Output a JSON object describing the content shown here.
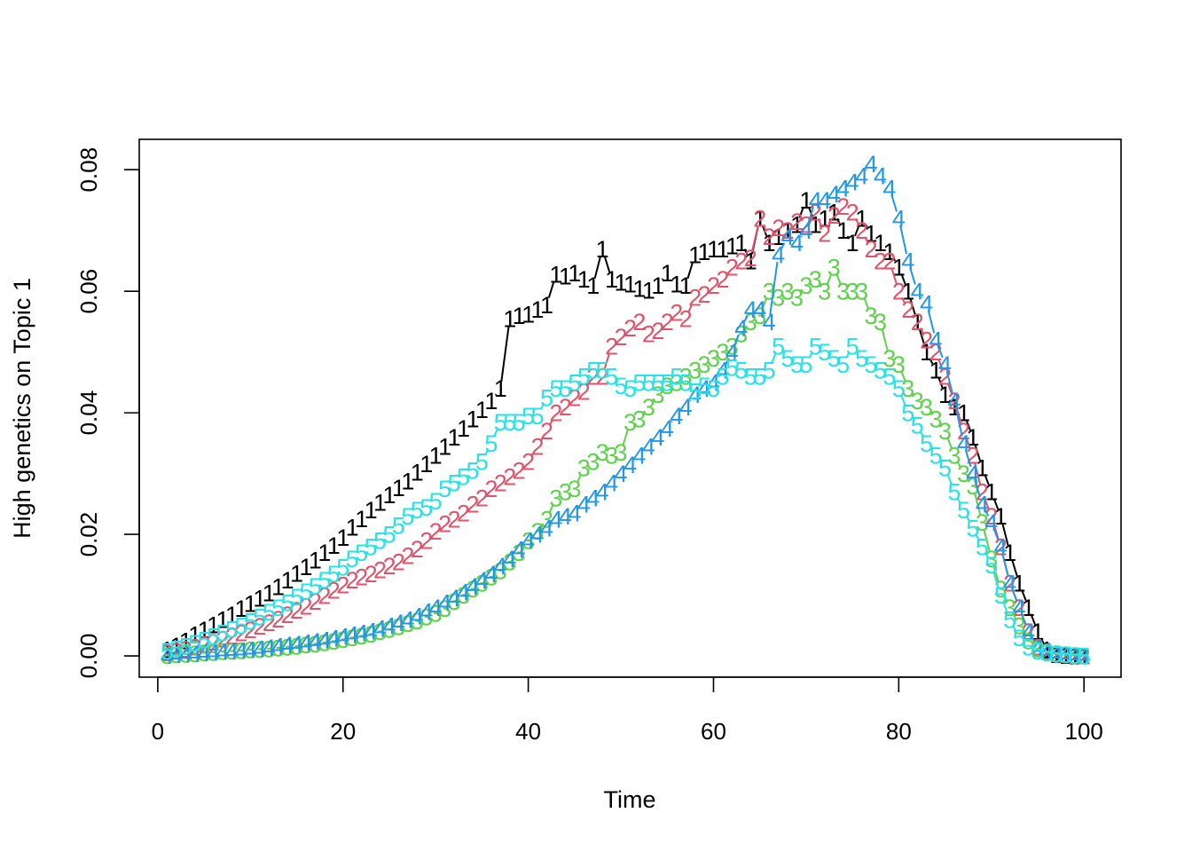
{
  "chart_data": {
    "type": "line",
    "plot_style": "numbered-character-points",
    "title": "",
    "xlabel": "Time",
    "ylabel": "High genetics on Topic 1",
    "xlim": [
      -2,
      104
    ],
    "ylim": [
      -0.0035,
      0.085
    ],
    "x_ticks": [
      0,
      20,
      40,
      60,
      80,
      100
    ],
    "x_tick_labels": [
      "0",
      "20",
      "40",
      "60",
      "80",
      "100"
    ],
    "y_ticks": [
      0,
      0.02,
      0.04,
      0.06,
      0.08
    ],
    "y_tick_labels": [
      "0.00",
      "0.02",
      "0.04",
      "0.06",
      "0.08"
    ],
    "grid": false,
    "x": [
      1,
      2,
      3,
      4,
      5,
      6,
      7,
      8,
      9,
      10,
      11,
      12,
      13,
      14,
      15,
      16,
      17,
      18,
      19,
      20,
      21,
      22,
      23,
      24,
      25,
      26,
      27,
      28,
      29,
      30,
      31,
      32,
      33,
      34,
      35,
      36,
      37,
      38,
      39,
      40,
      41,
      42,
      43,
      44,
      45,
      46,
      47,
      48,
      49,
      50,
      51,
      52,
      53,
      54,
      55,
      56,
      57,
      58,
      59,
      60,
      61,
      62,
      63,
      64,
      65,
      66,
      67,
      68,
      69,
      70,
      71,
      72,
      73,
      74,
      75,
      76,
      77,
      78,
      79,
      80,
      81,
      82,
      83,
      84,
      85,
      86,
      87,
      88,
      89,
      90,
      91,
      92,
      93,
      94,
      95,
      96,
      97,
      98,
      99,
      100
    ],
    "series": [
      {
        "name": "1",
        "symbol": "1",
        "color": "#000000",
        "values": [
          0.001,
          0.0017,
          0.0025,
          0.0035,
          0.0043,
          0.0051,
          0.006,
          0.0068,
          0.0078,
          0.0086,
          0.0095,
          0.0104,
          0.0114,
          0.0125,
          0.0136,
          0.0147,
          0.0158,
          0.017,
          0.0182,
          0.0195,
          0.0212,
          0.0226,
          0.024,
          0.0253,
          0.0265,
          0.0277,
          0.0288,
          0.0302,
          0.0316,
          0.033,
          0.0345,
          0.036,
          0.0375,
          0.039,
          0.0405,
          0.042,
          0.044,
          0.0555,
          0.056,
          0.0562,
          0.057,
          0.0578,
          0.0628,
          0.0625,
          0.063,
          0.062,
          0.061,
          0.067,
          0.062,
          0.0615,
          0.0612,
          0.0605,
          0.0602,
          0.061,
          0.063,
          0.0612,
          0.061,
          0.066,
          0.0665,
          0.067,
          0.067,
          0.0675,
          0.068,
          0.065,
          0.072,
          0.068,
          0.069,
          0.07,
          0.071,
          0.075,
          0.071,
          0.072,
          0.073,
          0.07,
          0.068,
          0.072,
          0.0695,
          0.068,
          0.0665,
          0.064,
          0.06,
          0.055,
          0.05,
          0.047,
          0.043,
          0.041,
          0.04,
          0.036,
          0.031,
          0.027,
          0.023,
          0.017,
          0.012,
          0.008,
          0.004,
          0.001,
          0.0002,
          0.0001,
          0.0,
          0.0
        ]
      },
      {
        "name": "2",
        "symbol": "2",
        "color": "#DF536B",
        "values": [
          0.0005,
          0.0008,
          0.0011,
          0.0015,
          0.0019,
          0.0023,
          0.0028,
          0.0033,
          0.0038,
          0.0043,
          0.0049,
          0.0055,
          0.0061,
          0.0068,
          0.0075,
          0.0082,
          0.009,
          0.0099,
          0.0108,
          0.0117,
          0.0125,
          0.013,
          0.0135,
          0.0142,
          0.0148,
          0.0155,
          0.0165,
          0.0176,
          0.019,
          0.0205,
          0.0218,
          0.0225,
          0.0235,
          0.025,
          0.026,
          0.0275,
          0.0285,
          0.0295,
          0.0305,
          0.032,
          0.0345,
          0.037,
          0.04,
          0.041,
          0.0425,
          0.0435,
          0.046,
          0.046,
          0.051,
          0.0525,
          0.054,
          0.055,
          0.053,
          0.0535,
          0.055,
          0.0565,
          0.0555,
          0.059,
          0.0595,
          0.061,
          0.062,
          0.064,
          0.065,
          0.0655,
          0.072,
          0.069,
          0.0705,
          0.07,
          0.0715,
          0.071,
          0.073,
          0.0695,
          0.0725,
          0.074,
          0.073,
          0.07,
          0.067,
          0.065,
          0.065,
          0.06,
          0.057,
          0.055,
          0.052,
          0.05,
          0.046,
          0.042,
          0.037,
          0.033,
          0.027,
          0.023,
          0.018,
          0.012,
          0.008,
          0.004,
          0.0015,
          0.0007,
          0.0004,
          0.0002,
          0.0001,
          0.0
        ]
      },
      {
        "name": "3",
        "symbol": "3",
        "color": "#61D04F",
        "values": [
          0.0001,
          0.0002,
          0.0003,
          0.0004,
          0.0005,
          0.0006,
          0.0007,
          0.0008,
          0.0009,
          0.001,
          0.0011,
          0.0012,
          0.0013,
          0.0015,
          0.0016,
          0.0018,
          0.002,
          0.0022,
          0.0024,
          0.0027,
          0.003,
          0.0033,
          0.0036,
          0.004,
          0.0044,
          0.0048,
          0.0053,
          0.0058,
          0.0064,
          0.007,
          0.0078,
          0.009,
          0.01,
          0.011,
          0.012,
          0.013,
          0.014,
          0.0155,
          0.017,
          0.019,
          0.0205,
          0.0225,
          0.026,
          0.027,
          0.0275,
          0.031,
          0.032,
          0.0335,
          0.033,
          0.0335,
          0.0385,
          0.039,
          0.041,
          0.043,
          0.0445,
          0.045,
          0.046,
          0.047,
          0.048,
          0.049,
          0.05,
          0.051,
          0.053,
          0.055,
          0.056,
          0.06,
          0.059,
          0.06,
          0.059,
          0.061,
          0.062,
          0.06,
          0.064,
          0.06,
          0.06,
          0.06,
          0.056,
          0.055,
          0.049,
          0.048,
          0.044,
          0.042,
          0.041,
          0.039,
          0.037,
          0.033,
          0.03,
          0.028,
          0.022,
          0.016,
          0.011,
          0.008,
          0.005,
          0.0025,
          0.0012,
          0.0006,
          0.0003,
          0.0002,
          0.0001,
          0.0
        ]
      },
      {
        "name": "4",
        "symbol": "4",
        "color": "#2297E6",
        "values": [
          0.0001,
          0.0002,
          0.0003,
          0.0004,
          0.0005,
          0.0006,
          0.0007,
          0.0008,
          0.0009,
          0.001,
          0.0012,
          0.0014,
          0.0016,
          0.0018,
          0.002,
          0.0022,
          0.0024,
          0.0026,
          0.0029,
          0.0032,
          0.0035,
          0.0038,
          0.0041,
          0.0045,
          0.005,
          0.0055,
          0.006,
          0.0066,
          0.0073,
          0.008,
          0.0088,
          0.0096,
          0.0105,
          0.0115,
          0.0125,
          0.0135,
          0.0148,
          0.016,
          0.0175,
          0.019,
          0.02,
          0.021,
          0.0225,
          0.023,
          0.0235,
          0.025,
          0.026,
          0.027,
          0.0285,
          0.03,
          0.0315,
          0.033,
          0.0345,
          0.036,
          0.0375,
          0.0395,
          0.041,
          0.043,
          0.044,
          0.045,
          0.047,
          0.05,
          0.054,
          0.057,
          0.057,
          0.055,
          0.066,
          0.069,
          0.068,
          0.07,
          0.075,
          0.075,
          0.076,
          0.077,
          0.078,
          0.079,
          0.081,
          0.079,
          0.077,
          0.072,
          0.065,
          0.06,
          0.058,
          0.052,
          0.048,
          0.042,
          0.035,
          0.03,
          0.025,
          0.022,
          0.018,
          0.012,
          0.008,
          0.004,
          0.0015,
          0.0008,
          0.0004,
          0.0002,
          0.0001,
          0.0
        ]
      },
      {
        "name": "5",
        "symbol": "5",
        "color": "#28E2E5",
        "values": [
          0.0008,
          0.0012,
          0.0016,
          0.0021,
          0.0026,
          0.0032,
          0.0038,
          0.0044,
          0.005,
          0.0057,
          0.0064,
          0.0072,
          0.008,
          0.0088,
          0.0097,
          0.0106,
          0.0115,
          0.0125,
          0.0135,
          0.0146,
          0.016,
          0.017,
          0.018,
          0.019,
          0.02,
          0.0215,
          0.023,
          0.024,
          0.0245,
          0.0255,
          0.0275,
          0.0285,
          0.0295,
          0.0305,
          0.032,
          0.035,
          0.0385,
          0.0385,
          0.0385,
          0.0395,
          0.0395,
          0.0425,
          0.044,
          0.044,
          0.045,
          0.046,
          0.047,
          0.047,
          0.046,
          0.0445,
          0.044,
          0.045,
          0.045,
          0.045,
          0.045,
          0.046,
          0.045,
          0.0435,
          0.0445,
          0.044,
          0.046,
          0.0475,
          0.047,
          0.046,
          0.046,
          0.047,
          0.051,
          0.049,
          0.048,
          0.048,
          0.051,
          0.05,
          0.049,
          0.048,
          0.051,
          0.049,
          0.048,
          0.047,
          0.046,
          0.044,
          0.04,
          0.038,
          0.035,
          0.033,
          0.031,
          0.027,
          0.024,
          0.021,
          0.018,
          0.015,
          0.01,
          0.006,
          0.003,
          0.0015,
          0.0008,
          0.0005,
          0.0003,
          0.0002,
          0.0001,
          0.0
        ]
      }
    ]
  }
}
